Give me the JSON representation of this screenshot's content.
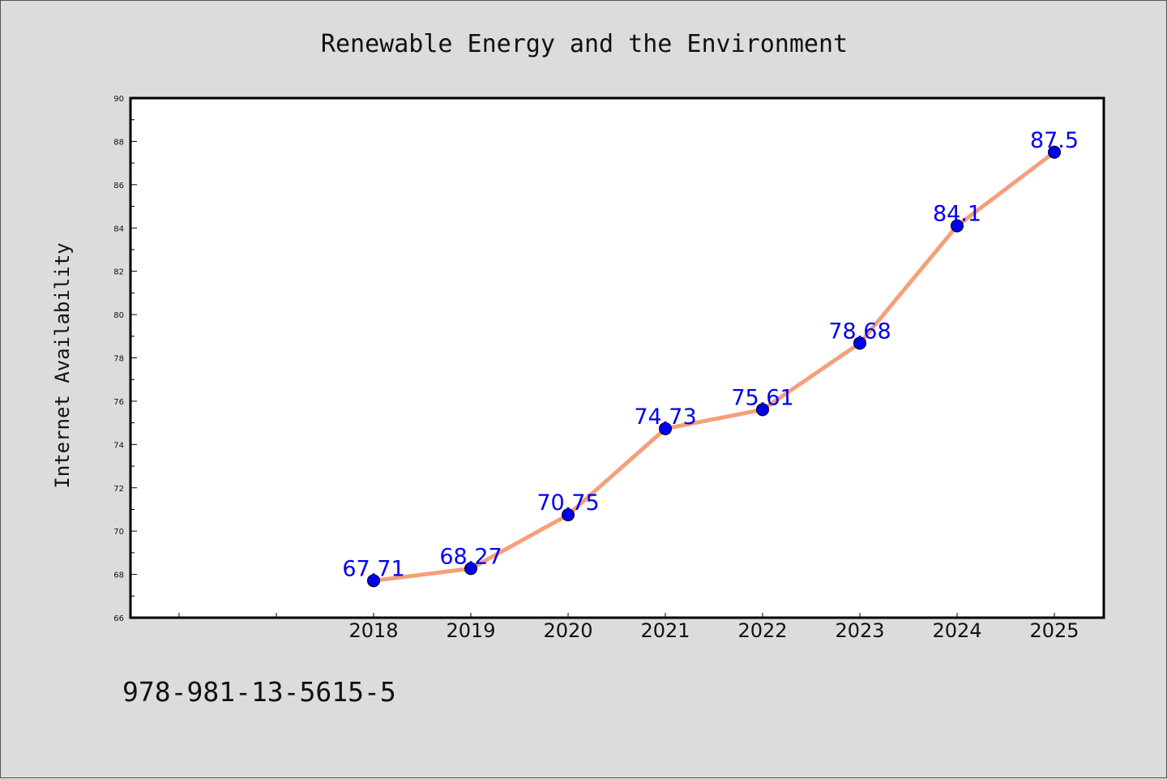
{
  "chart_data": {
    "type": "line",
    "title": "Renewable Energy and the Environment",
    "xlabel": "",
    "ylabel": "Internet Availability",
    "x": [
      "2018",
      "2019",
      "2020",
      "2021",
      "2022",
      "2023",
      "2024",
      "2025"
    ],
    "series": [
      {
        "values": [
          67.71,
          68.27,
          70.75,
          74.73,
          75.61,
          78.68,
          84.1,
          87.5
        ],
        "labels": [
          "67.71",
          "68.27",
          "70.75",
          "74.73",
          "75.61",
          "78.68",
          "84.1",
          "87.5"
        ],
        "line_color": "#f4a07c",
        "marker_color": "#0000ee",
        "label_color": "#0000ee"
      }
    ],
    "ylim": [
      66,
      90
    ],
    "yticks": [
      66,
      68,
      70,
      72,
      74,
      76,
      78,
      80,
      82,
      84,
      86,
      88,
      90
    ],
    "grid": false,
    "legend": "none"
  },
  "footer_text": "978-981-13-5615-5"
}
